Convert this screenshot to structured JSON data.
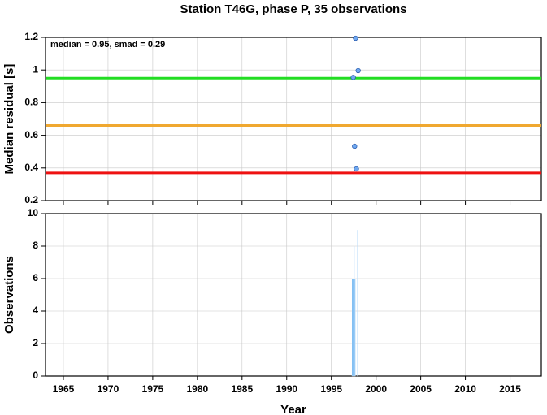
{
  "chart_data": [
    {
      "type": "scatter",
      "title": "Station T46G, phase P, 35 observations",
      "ylabel": "Median residual [s]",
      "annotation": "median = 0.95, smad = 0.29",
      "x": [
        1997.7,
        1998.0,
        1997.45,
        1997.6,
        1997.8
      ],
      "values": [
        1.195,
        0.996,
        0.955,
        0.533,
        0.394
      ],
      "color": "#6fa8f0",
      "hlines": [
        {
          "value": 0.95,
          "color": "#22dd22"
        },
        {
          "value": 0.66,
          "color": "#f0a830"
        },
        {
          "value": 0.37,
          "color": "#ee1111"
        }
      ],
      "xlim": [
        1963,
        2018.5
      ],
      "ylim": [
        0.2,
        1.2
      ],
      "xticks": [
        1965,
        1970,
        1975,
        1980,
        1985,
        1990,
        1995,
        2000,
        2005,
        2010,
        2015
      ],
      "yticks": [
        0.2,
        0.4,
        0.6,
        0.8,
        1.0,
        1.2
      ],
      "grid": true
    },
    {
      "type": "histogram",
      "xlabel": "Year",
      "ylabel": "Observations",
      "bins": [
        1997.3,
        1997.4,
        1997.5,
        1997.6,
        1997.7,
        1997.8,
        1997.9,
        1998.0
      ],
      "counts": [
        6,
        6,
        8,
        6,
        0,
        0,
        9
      ],
      "color": "#5aaaf0",
      "xlim": [
        1963,
        2018.5
      ],
      "ylim": [
        0,
        10
      ],
      "xticks": [
        1965,
        1970,
        1975,
        1980,
        1985,
        1990,
        1995,
        2000,
        2005,
        2010,
        2015
      ],
      "yticks": [
        0,
        2,
        4,
        6,
        8,
        10
      ],
      "grid": true
    }
  ]
}
